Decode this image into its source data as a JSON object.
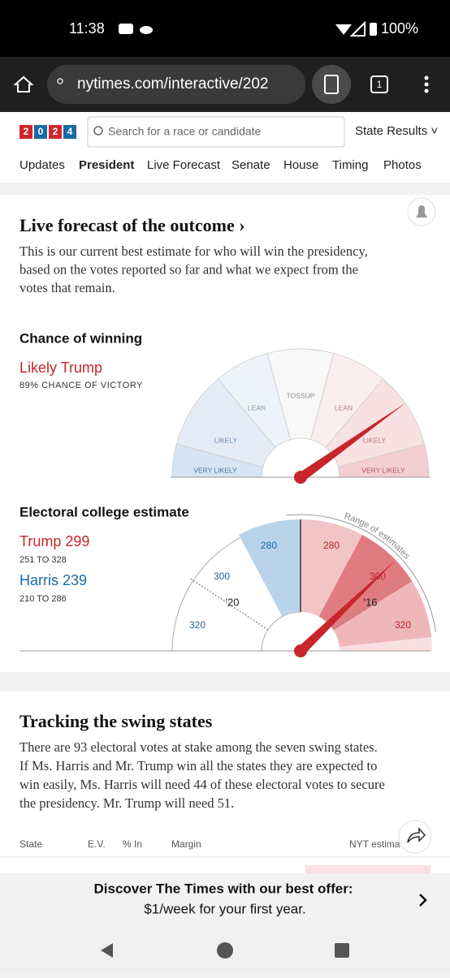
{
  "status_bar": {
    "time": "11:38",
    "battery": "100%"
  },
  "browser": {
    "url": "nytimes.com/interactive/202",
    "tab_count": "1"
  },
  "header": {
    "logo": [
      "2",
      "0",
      "2",
      "4"
    ],
    "search_placeholder": "Search for a race or candidate",
    "state_results": "State Results ˅",
    "nav": [
      "Updates",
      "President",
      "Live Forecast",
      "Senate",
      "House",
      "Timing",
      "Photos"
    ]
  },
  "forecast": {
    "title": "Live forecast of the outcome ›",
    "description": [
      "This is our current best estimate for who will win the presidency,",
      "based on the votes reported so far and what we expect from the",
      "votes that remain."
    ],
    "chance_heading": "Chance of winning",
    "leader": "Likely Trump",
    "leader_chance": "89% CHANCE OF VICTORY",
    "gauge_labels": [
      "VERY LIKELY",
      "LIKELY",
      "LEAN",
      "TOSSUP",
      "LEAN",
      "LIKELY",
      "VERY LIKELY"
    ],
    "electoral_heading": "Electoral college estimate",
    "trump": "Trump 299",
    "trump_range": "251 TO 328",
    "harris": "Harris 239",
    "harris_range": "210 TO 286",
    "range_label": "Range of estimates",
    "harris_ticks": [
      280,
      300,
      320
    ],
    "trump_ticks": [
      280,
      300,
      320
    ],
    "past_2020": "'20",
    "past_2016": "'16"
  },
  "swing": {
    "title": "Tracking the swing states",
    "description": [
      "There are 93 electoral votes at stake among the seven swing states.",
      "If Ms. Harris and Mr. Trump win all the states they are expected to",
      "win easily, Ms. Harris will need 44 of these electoral votes to secure",
      "the presidency. Mr. Trump will need 51."
    ],
    "columns": [
      "State",
      "E.V.",
      "% In",
      "Margin",
      "NYT estima"
    ]
  },
  "banner": {
    "line1": "Discover The Times with our best offer:",
    "line2": "$1/week for your first year."
  }
}
